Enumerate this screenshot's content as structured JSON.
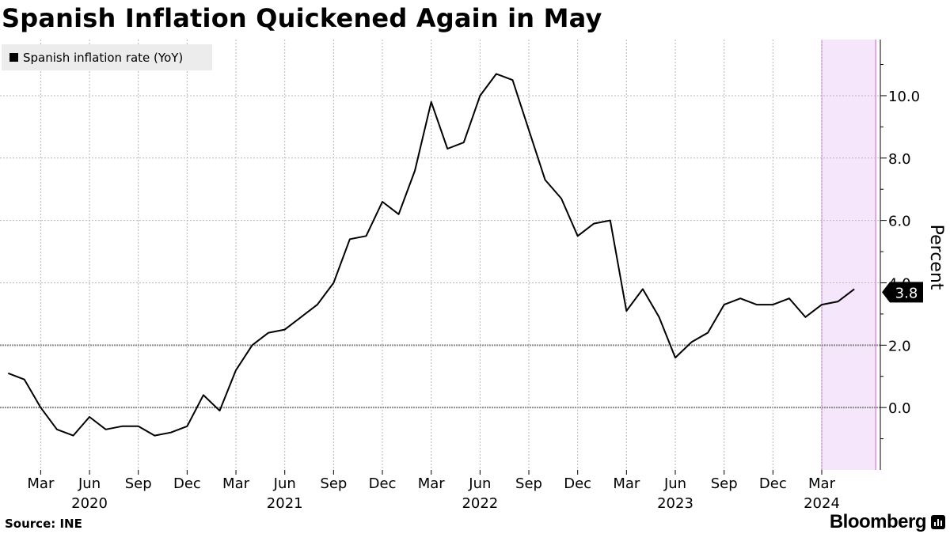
{
  "header": {
    "title": "Spanish Inflation Quickened Again in May"
  },
  "legend": {
    "label": "Spanish inflation rate (YoY)"
  },
  "footer": {
    "source": "Source: INE",
    "brand": "Bloomberg"
  },
  "colors": {
    "line": "#000000",
    "highlight_fill": "#f6e6fb",
    "highlight_edge": "#c965cc",
    "grid": "#b8b8b8",
    "zero_line": "#8c8c8c"
  },
  "chart_data": {
    "type": "line",
    "title": "Spanish Inflation Quickened Again in May",
    "ylabel": "Percent",
    "xlabel": "",
    "ylim": [
      -2.0,
      11.8
    ],
    "y_ticks": [
      "0.0",
      "2.0",
      "4.0",
      "6.0",
      "8.0",
      "10.0"
    ],
    "grid": true,
    "legend_position": "top-left",
    "series": [
      {
        "name": "Spanish inflation rate (YoY)",
        "x": [
          "2020-01",
          "2020-02",
          "2020-03",
          "2020-04",
          "2020-05",
          "2020-06",
          "2020-07",
          "2020-08",
          "2020-09",
          "2020-10",
          "2020-11",
          "2020-12",
          "2021-01",
          "2021-02",
          "2021-03",
          "2021-04",
          "2021-05",
          "2021-06",
          "2021-07",
          "2021-08",
          "2021-09",
          "2021-10",
          "2021-11",
          "2021-12",
          "2022-01",
          "2022-02",
          "2022-03",
          "2022-04",
          "2022-05",
          "2022-06",
          "2022-07",
          "2022-08",
          "2022-09",
          "2022-10",
          "2022-11",
          "2022-12",
          "2023-01",
          "2023-02",
          "2023-03",
          "2023-04",
          "2023-05",
          "2023-06",
          "2023-07",
          "2023-08",
          "2023-09",
          "2023-10",
          "2023-11",
          "2023-12",
          "2024-01",
          "2024-02",
          "2024-03",
          "2024-04",
          "2024-05"
        ],
        "values": [
          1.1,
          0.9,
          0.0,
          -0.7,
          -0.9,
          -0.3,
          -0.7,
          -0.6,
          -0.6,
          -0.9,
          -0.8,
          -0.6,
          0.4,
          -0.1,
          1.2,
          2.0,
          2.4,
          2.5,
          2.9,
          3.3,
          4.0,
          5.4,
          5.5,
          6.6,
          6.2,
          7.6,
          9.8,
          8.3,
          8.5,
          10.0,
          10.7,
          10.5,
          8.9,
          7.3,
          6.7,
          5.5,
          5.9,
          6.0,
          3.1,
          3.8,
          2.9,
          1.6,
          2.1,
          2.4,
          3.3,
          3.5,
          3.3,
          3.3,
          3.5,
          2.9,
          3.3,
          3.4,
          3.8
        ]
      }
    ],
    "x_ticks": [
      {
        "date": "2020-03",
        "label": "Mar"
      },
      {
        "date": "2020-06",
        "label": "Jun"
      },
      {
        "date": "2020-09",
        "label": "Sep"
      },
      {
        "date": "2020-12",
        "label": "Dec"
      },
      {
        "date": "2021-03",
        "label": "Mar"
      },
      {
        "date": "2021-06",
        "label": "Jun"
      },
      {
        "date": "2021-09",
        "label": "Sep"
      },
      {
        "date": "2021-12",
        "label": "Dec"
      },
      {
        "date": "2022-03",
        "label": "Mar"
      },
      {
        "date": "2022-06",
        "label": "Jun"
      },
      {
        "date": "2022-09",
        "label": "Sep"
      },
      {
        "date": "2022-12",
        "label": "Dec"
      },
      {
        "date": "2023-03",
        "label": "Mar"
      },
      {
        "date": "2023-06",
        "label": "Jun"
      },
      {
        "date": "2023-09",
        "label": "Sep"
      },
      {
        "date": "2023-12",
        "label": "Dec"
      },
      {
        "date": "2024-03",
        "label": "Mar"
      }
    ],
    "year_labels": [
      {
        "date": "2020-06",
        "label": "2020"
      },
      {
        "date": "2021-06",
        "label": "2021"
      },
      {
        "date": "2022-06",
        "label": "2022"
      },
      {
        "date": "2023-06",
        "label": "2023"
      },
      {
        "date": "2024-03",
        "label": "2024"
      }
    ],
    "highlight_range": [
      "2024-03",
      "2024-05"
    ],
    "last_value_label": "3.8"
  }
}
